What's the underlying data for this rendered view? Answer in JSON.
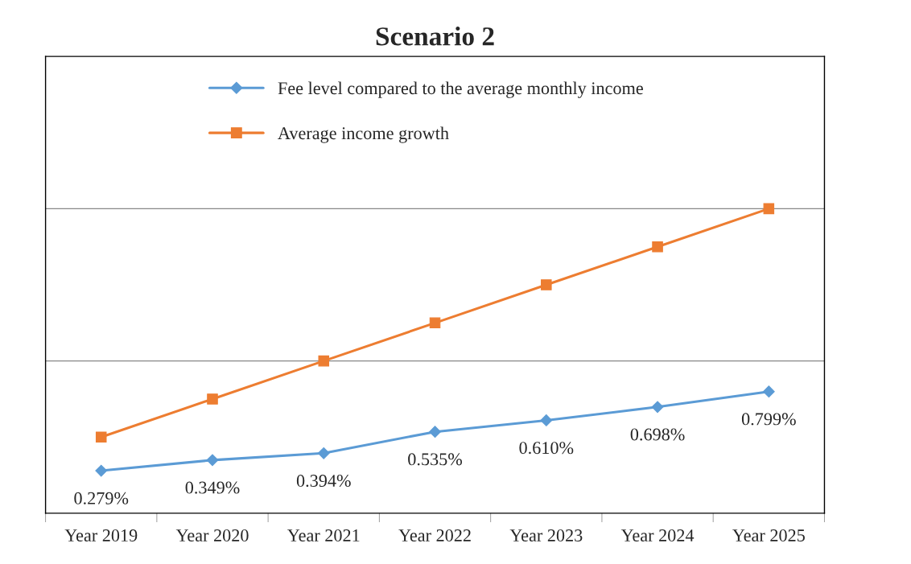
{
  "chart_data": {
    "type": "line",
    "title": "Scenario 2",
    "categories": [
      "Year 2019",
      "Year 2020",
      "Year 2021",
      "Year 2022",
      "Year 2023",
      "Year 2024",
      "Year 2025"
    ],
    "series": [
      {
        "name": "Fee level compared to the average monthly income",
        "color": "#5b9bd5",
        "marker": "diamond",
        "values": [
          0.279,
          0.349,
          0.394,
          0.535,
          0.61,
          0.698,
          0.799
        ],
        "value_labels": [
          "0.279%",
          "0.349%",
          "0.394%",
          "0.535%",
          "0.610%",
          "0.698%",
          "0.799%"
        ]
      },
      {
        "name": "Average income growth",
        "color": "#ed7d31",
        "marker": "square",
        "values": [
          0.5,
          0.75,
          1.0,
          1.25,
          1.5,
          1.75,
          2.0
        ]
      }
    ],
    "ylim": [
      0,
      3
    ],
    "ref_lines": [
      {
        "axis": "y",
        "value": 1,
        "color": "#888888"
      },
      {
        "axis": "y",
        "value": 2,
        "color": "#888888"
      }
    ],
    "legend": "top left",
    "tick_labels": "x",
    "line_style": "solid"
  }
}
